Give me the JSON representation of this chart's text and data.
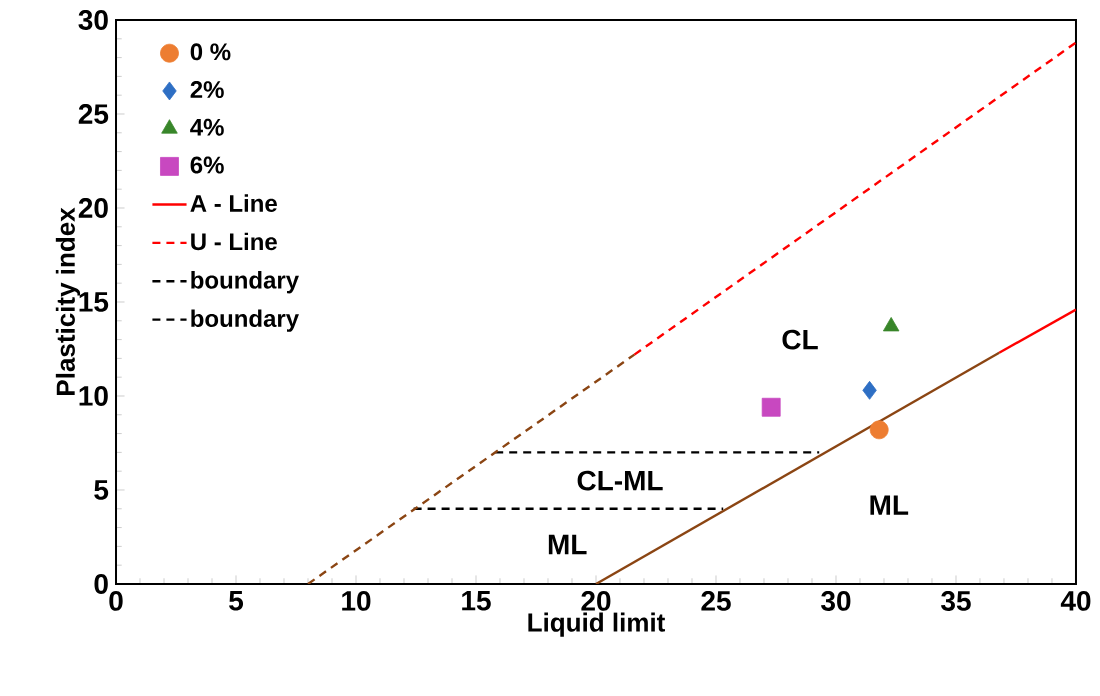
{
  "chart_data": {
    "type": "scatter",
    "xlabel": "Liquid limit",
    "ylabel": "Plasticity index",
    "xlim": [
      0,
      40
    ],
    "ylim": [
      0,
      30
    ],
    "xticks": [
      0,
      5,
      10,
      15,
      20,
      25,
      30,
      35,
      40
    ],
    "yticks": [
      0,
      5,
      10,
      15,
      20,
      25,
      30
    ],
    "grid": false,
    "legend": "top left",
    "series": [
      {
        "name": "0 %",
        "marker": "circle",
        "color": "#ed7d31",
        "x": [
          31.8
        ],
        "values": [
          8.2
        ]
      },
      {
        "name": "2%",
        "marker": "diamond",
        "color": "#2e6fc4",
        "x": [
          31.4
        ],
        "values": [
          10.3
        ]
      },
      {
        "name": "4%",
        "marker": "triangle",
        "color": "#38862a",
        "x": [
          32.3
        ],
        "values": [
          13.7
        ]
      },
      {
        "name": "6%",
        "marker": "square",
        "color": "#c848c0",
        "x": [
          27.3
        ],
        "values": [
          9.4
        ]
      },
      {
        "name": "A - Line",
        "type": "line",
        "line_style": "solid",
        "color": "#ff0000",
        "x": [
          36.8,
          40
        ],
        "values": [
          12.3,
          14.6
        ]
      },
      {
        "name": "U - Line",
        "type": "line",
        "line_style": "dashed",
        "color": "#ff0000",
        "x": [
          21.6,
          40
        ],
        "values": [
          12.2,
          28.8
        ]
      },
      {
        "name": "boundary",
        "type": "line",
        "line_style": "dashed",
        "color": "#000000",
        "x": [
          15.8,
          29.3
        ],
        "values": [
          7,
          7
        ]
      },
      {
        "name": "boundary",
        "type": "line",
        "line_style": "dashed",
        "color": "#000000",
        "x": [
          12.4,
          25.3
        ],
        "values": [
          4,
          4
        ]
      },
      {
        "type": "line",
        "line_style": "solid",
        "color": "#8b4513",
        "x": [
          20,
          36.8
        ],
        "values": [
          0,
          12.3
        ]
      },
      {
        "type": "line",
        "line_style": "dashed",
        "color": "#8b4513",
        "x": [
          8,
          21.6
        ],
        "values": [
          0,
          12.2
        ]
      }
    ],
    "annotations": [
      "CL",
      "CL-ML",
      "ML",
      "ML"
    ]
  }
}
